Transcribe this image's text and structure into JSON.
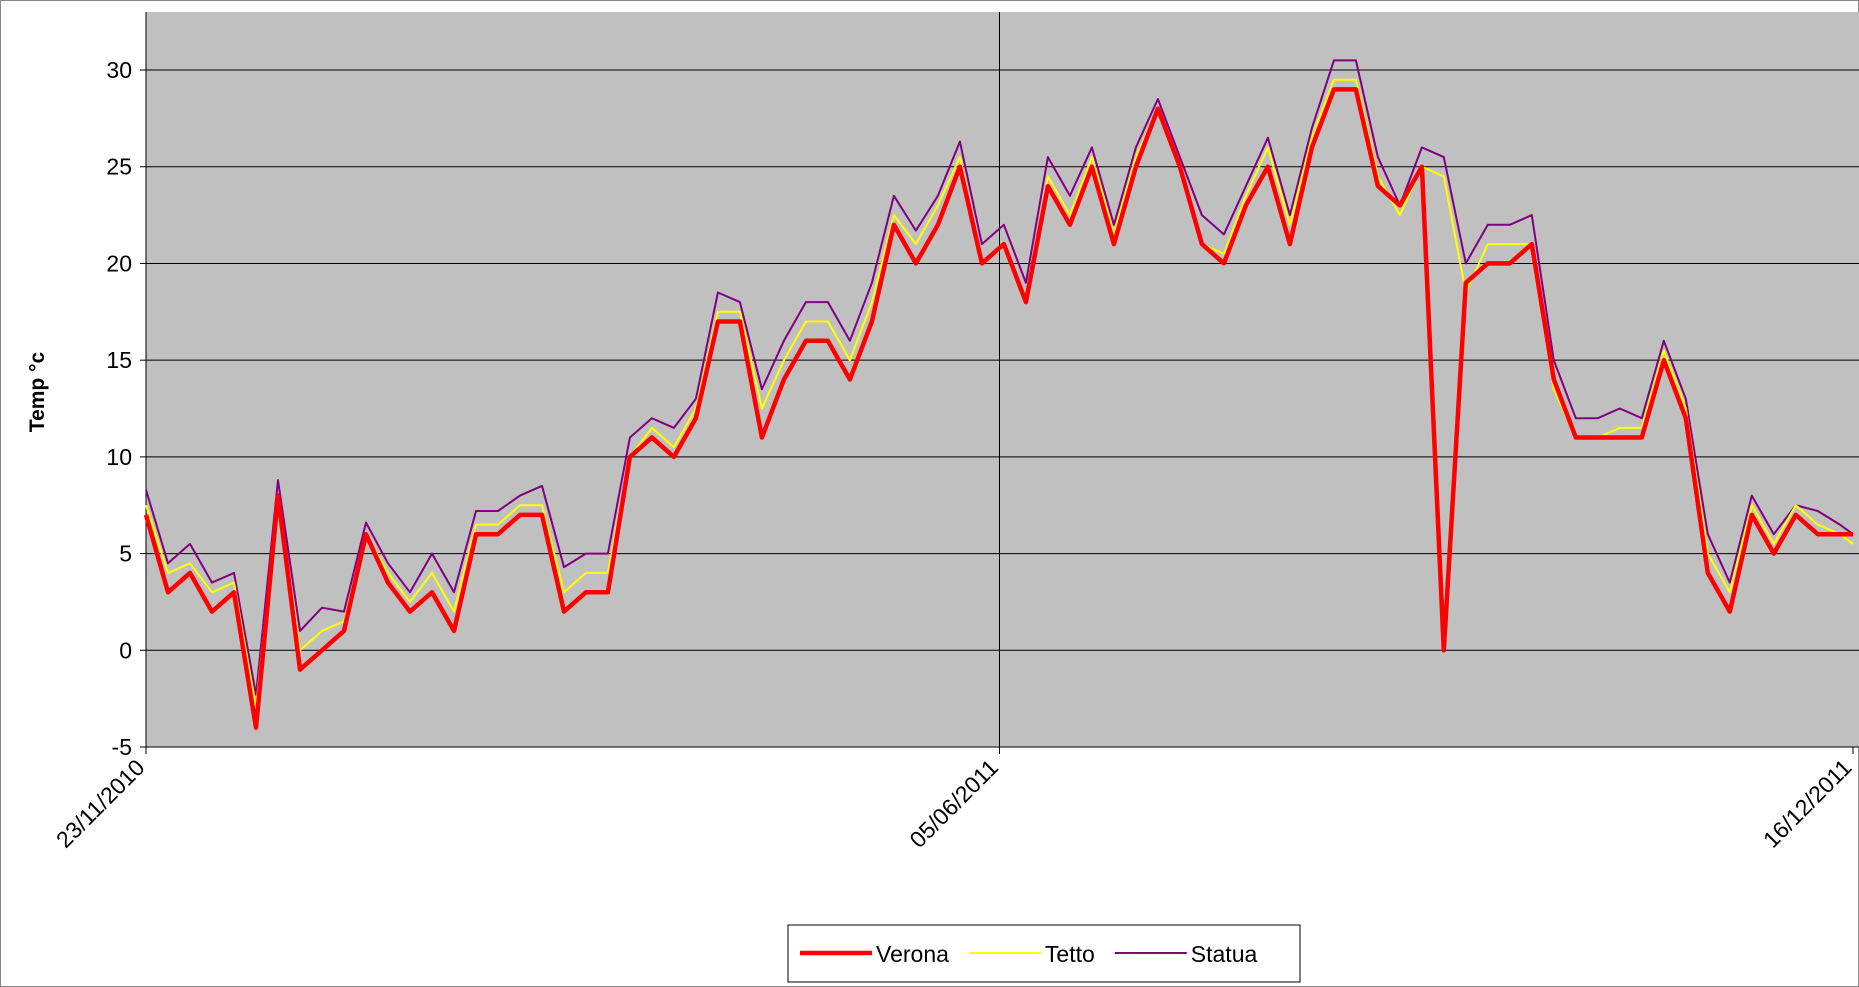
{
  "chart_data": {
    "type": "line",
    "y_label": "Temp °c",
    "x": [
      "23/11/2010",
      "28/11/2010",
      "03/12/2010",
      "08/12/2010",
      "13/12/2010",
      "18/12/2010",
      "23/12/2010",
      "28/12/2010",
      "02/01/2011",
      "07/01/2011",
      "12/01/2011",
      "17/01/2011",
      "22/01/2011",
      "27/01/2011",
      "01/02/2011",
      "06/02/2011",
      "11/02/2011",
      "16/02/2011",
      "21/02/2011",
      "26/02/2011",
      "03/03/2011",
      "08/03/2011",
      "13/03/2011",
      "18/03/2011",
      "23/03/2011",
      "28/03/2011",
      "02/04/2011",
      "07/04/2011",
      "12/04/2011",
      "17/04/2011",
      "22/04/2011",
      "27/04/2011",
      "02/05/2011",
      "07/05/2011",
      "12/05/2011",
      "17/05/2011",
      "22/05/2011",
      "27/05/2011",
      "01/06/2011",
      "06/06/2011",
      "11/06/2011",
      "16/06/2011",
      "21/06/2011",
      "26/06/2011",
      "01/07/2011",
      "06/07/2011",
      "11/07/2011",
      "16/07/2011",
      "21/07/2011",
      "26/07/2011",
      "31/07/2011",
      "05/08/2011",
      "10/08/2011",
      "15/08/2011",
      "20/08/2011",
      "25/08/2011",
      "30/08/2011",
      "04/09/2011",
      "09/09/2011",
      "14/09/2011",
      "19/09/2011",
      "24/09/2011",
      "29/09/2011",
      "04/10/2011",
      "09/10/2011",
      "14/10/2011",
      "19/10/2011",
      "24/10/2011",
      "29/10/2011",
      "03/11/2011",
      "08/11/2011",
      "13/11/2011",
      "18/11/2011",
      "23/11/2011",
      "28/11/2011",
      "03/12/2011",
      "08/12/2011",
      "13/12/2011",
      "16/12/2011"
    ],
    "series": [
      {
        "name": "Verona",
        "color": "#ff0000",
        "values": [
          7,
          3,
          4,
          2,
          3,
          -4,
          8,
          -1,
          0,
          1,
          6,
          3.5,
          2,
          3,
          1,
          6,
          6,
          7,
          7,
          2,
          3,
          3,
          10,
          11,
          10,
          12,
          17,
          17,
          11,
          14,
          16,
          16,
          14,
          17,
          22,
          20,
          22,
          25,
          20,
          21,
          18,
          24,
          22,
          25,
          21,
          25,
          28,
          25,
          21,
          20,
          23,
          25,
          21,
          26,
          29,
          29,
          24,
          23,
          25,
          0,
          19,
          20,
          20,
          21,
          14,
          11,
          11,
          11,
          11,
          15,
          12,
          4,
          2,
          7,
          5,
          7,
          6,
          6,
          6
        ]
      },
      {
        "name": "Tetto",
        "color": "#ffff00",
        "values": [
          7.5,
          4,
          4.5,
          3,
          3.5,
          -3,
          8,
          0,
          1,
          1.5,
          6,
          4,
          2.5,
          4,
          2,
          6.5,
          6.5,
          7.5,
          7.5,
          3,
          4,
          4,
          10,
          11.5,
          10.5,
          12.5,
          17.5,
          17.5,
          12.5,
          15,
          17,
          17,
          15,
          18,
          22.5,
          21,
          23,
          25.5,
          20,
          21,
          18,
          24.5,
          22.5,
          25.5,
          21.5,
          25.5,
          28,
          25,
          21,
          20.5,
          23.5,
          26,
          22,
          26.5,
          29.5,
          29.5,
          24.5,
          22.5,
          25,
          24.5,
          18.5,
          21,
          21,
          21,
          13.5,
          11,
          11,
          11.5,
          11.5,
          15.5,
          12.5,
          5,
          3,
          7.5,
          5.5,
          7.5,
          6.5,
          6,
          5.5
        ]
      },
      {
        "name": "Statua",
        "color": "#800080",
        "values": [
          8.3,
          4.5,
          5.5,
          3.5,
          4,
          -2.3,
          8.8,
          1,
          2.2,
          2,
          6.6,
          4.5,
          3,
          5,
          3,
          7.2,
          7.2,
          8,
          8.5,
          4.3,
          5,
          5,
          11,
          12,
          11.5,
          13,
          18.5,
          18,
          13.5,
          16,
          18,
          18,
          16,
          19,
          23.5,
          21.7,
          23.5,
          26.3,
          21,
          22,
          19,
          25.5,
          23.5,
          26,
          22,
          26,
          28.5,
          25.5,
          22.5,
          21.5,
          24,
          26.5,
          22.5,
          27,
          30.5,
          30.5,
          25.5,
          23,
          26,
          25.5,
          20,
          22,
          22,
          22.5,
          15,
          12,
          12,
          12.5,
          12,
          16,
          13,
          6,
          3.5,
          8,
          6,
          7.5,
          7.2,
          6.5,
          6
        ]
      }
    ],
    "xlim": [
      "23/11/2010",
      "16/12/2011"
    ],
    "xticks": [
      "23/11/2010",
      "05/06/2011",
      "16/12/2011"
    ],
    "ylim": [
      -5,
      33
    ],
    "yticks": [
      -5,
      0,
      5,
      10,
      15,
      20,
      25,
      30
    ],
    "grid": true,
    "plot_background": "#c0c0c0",
    "legend": "bottom"
  }
}
